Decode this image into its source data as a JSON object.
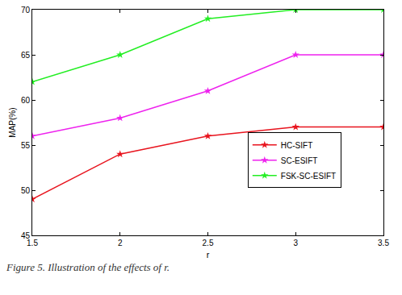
{
  "chart_data": {
    "type": "line",
    "x_label": "r",
    "y_label": "MAP(%)",
    "annotations": [
      "Figure 5. Illustration of the effects of r."
    ],
    "x": [
      1.5,
      2,
      2.5,
      3,
      3.5
    ],
    "series": [
      {
        "name": "HC-SIFT",
        "color": "#e8141e",
        "values": [
          49,
          54,
          56,
          57,
          57
        ]
      },
      {
        "name": "SC-ESIFT",
        "color": "#ee22ee",
        "values": [
          56,
          58,
          61,
          65,
          65
        ]
      },
      {
        "name": "FSK-SC-ESIFT",
        "color": "#22ee22",
        "values": [
          62,
          65,
          69,
          70,
          70
        ]
      }
    ],
    "xlim": [
      1.5,
      3.5
    ],
    "xticks": [
      1.5,
      2,
      2.5,
      3,
      3.5
    ],
    "ylim": [
      45,
      70
    ],
    "yticks": [
      45,
      50,
      55,
      60,
      65,
      70
    ],
    "grid": false,
    "legend": "lower right",
    "marker": "star",
    "line_style": "solid"
  }
}
